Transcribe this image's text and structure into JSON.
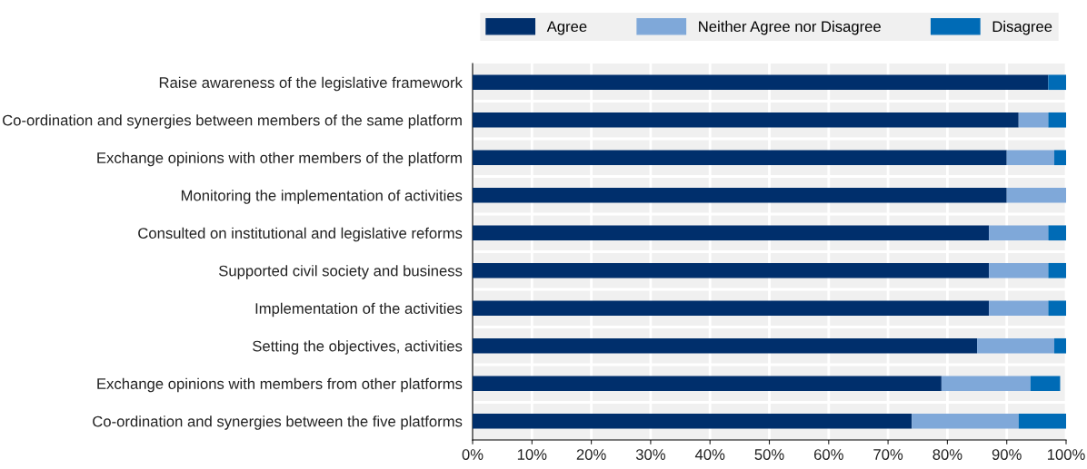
{
  "chart_data": {
    "type": "bar",
    "orientation": "horizontal",
    "stacked": true,
    "categories": [
      "Raise awareness of the legislative framework",
      "Co-ordination and synergies between members of the same platform",
      "Exchange opinions with other members of the platform",
      "Monitoring the implementation of activities",
      "Consulted on institutional and legislative reforms",
      "Supported civil society and business",
      "Implementation of the activities",
      "Setting the objectives, activities",
      "Exchange opinions with members from other platforms",
      "Co-ordination and synergies between the five platforms"
    ],
    "series": [
      {
        "name": "Agree",
        "color": "#002f6c",
        "values": [
          97,
          92,
          90,
          90,
          87,
          87,
          87,
          85,
          79,
          74
        ]
      },
      {
        "name": "Neither Agree nor Disagree",
        "color": "#7fa8d9",
        "values": [
          0,
          5,
          8,
          10,
          10,
          10,
          10,
          13,
          15,
          18
        ]
      },
      {
        "name": "Disagree",
        "color": "#006bb6",
        "values": [
          3,
          3,
          2,
          0,
          3,
          3,
          3,
          2,
          5,
          8
        ]
      }
    ],
    "xlim": [
      0,
      100
    ],
    "xticks": [
      {
        "value": 0,
        "label": "0%"
      },
      {
        "value": 10,
        "label": "10%"
      },
      {
        "value": 20,
        "label": "20%"
      },
      {
        "value": 30,
        "label": "30%"
      },
      {
        "value": 40,
        "label": "40%"
      },
      {
        "value": 50,
        "label": "50%"
      },
      {
        "value": 60,
        "label": "60%"
      },
      {
        "value": 70,
        "label": "70%"
      },
      {
        "value": 80,
        "label": "80%"
      },
      {
        "value": 90,
        "label": "90%"
      },
      {
        "value": 100,
        "label": "100%"
      }
    ],
    "grid": "x",
    "legend": "top"
  }
}
